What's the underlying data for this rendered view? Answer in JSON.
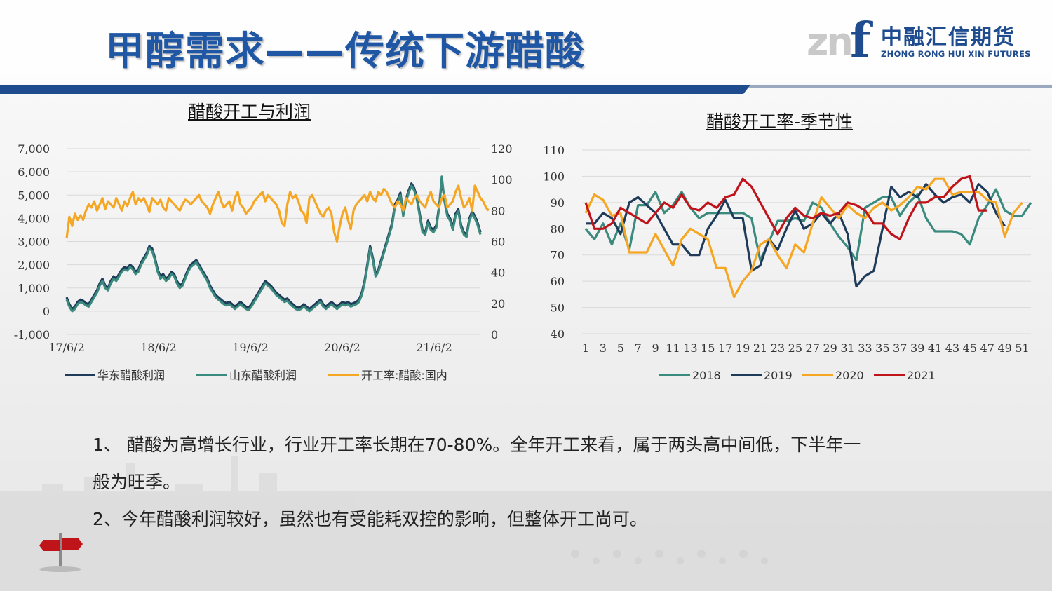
{
  "slide": {
    "title": "甲醇需求——传统下游醋酸",
    "logo": {
      "mark_left": "zn",
      "mark_right": "f",
      "name_cn": "中融汇信期货",
      "name_en": "ZHONG RONG HUI XIN FUTURES"
    },
    "paragraphs": [
      "1、  醋酸为高增长行业，行业开工率长期在70-80%。全年开工来看，属于两头高中间低，下半年一",
      "般为旺季。",
      "2、今年醋酸利润较好，虽然也有受能耗双控的影响，但整体开工尚可。"
    ],
    "colors": {
      "title": "#1f57a5",
      "band": "#1f4c8f"
    }
  },
  "chart_data": [
    {
      "type": "line",
      "title": "醋酸开工与利润",
      "x_tick_labels": [
        "17/6/2",
        "18/6/2",
        "19/6/2",
        "20/6/2",
        "21/6/2"
      ],
      "left_axis": {
        "ylim": [
          -1000,
          7000
        ],
        "ticks": [
          "-1,000",
          "0",
          "1,000",
          "2,000",
          "3,000",
          "4,000",
          "5,000",
          "6,000",
          "7,000"
        ]
      },
      "right_axis": {
        "ylim": [
          0,
          120
        ],
        "ticks": [
          "0",
          "20",
          "40",
          "60",
          "80",
          "100",
          "120"
        ]
      },
      "legend_position": "bottom",
      "grid": true,
      "series": [
        {
          "name": "华东醋酸利润",
          "axis": "left",
          "color": "#1f3b5a",
          "values": [
            600,
            300,
            100,
            200,
            400,
            500,
            450,
            350,
            300,
            500,
            700,
            900,
            1200,
            1400,
            1100,
            1000,
            1300,
            1500,
            1400,
            1600,
            1800,
            1900,
            1850,
            2000,
            1900,
            1700,
            1800,
            2100,
            2300,
            2500,
            2800,
            2700,
            2300,
            1800,
            1500,
            1600,
            1400,
            1500,
            1700,
            1600,
            1300,
            1100,
            1200,
            1500,
            1800,
            2000,
            2100,
            2200,
            2000,
            1800,
            1600,
            1400,
            1100,
            900,
            700,
            600,
            500,
            400,
            350,
            400,
            300,
            200,
            300,
            400,
            300,
            200,
            150,
            300,
            500,
            700,
            900,
            1100,
            1300,
            1200,
            1100,
            950,
            800,
            700,
            600,
            500,
            550,
            400,
            300,
            200,
            150,
            200,
            300,
            200,
            100,
            200,
            300,
            400,
            500,
            300,
            200,
            300,
            400,
            300,
            200,
            300,
            400,
            350,
            400,
            300,
            350,
            400,
            500,
            800,
            1300,
            2000,
            2800,
            2300,
            1600,
            1800,
            2200,
            2600,
            3000,
            3400,
            3800,
            4600,
            4800,
            5100,
            4200,
            4800,
            5200,
            5500,
            5300,
            4900,
            4200,
            3500,
            3400,
            3900,
            3600,
            3500,
            3700,
            4500,
            5600,
            4800,
            4200,
            4000,
            3600,
            4200,
            4400,
            3700,
            3400,
            3300,
            4000,
            4300,
            4100,
            3800,
            3400
          ],
          "note": "visible tick range start"
        },
        {
          "name": "山东醋酸利润",
          "axis": "left",
          "color": "#3a8a7d",
          "values": [
            500,
            200,
            0,
            100,
            300,
            400,
            350,
            250,
            200,
            400,
            600,
            800,
            1100,
            1300,
            1000,
            900,
            1200,
            1400,
            1300,
            1500,
            1700,
            1800,
            1750,
            1900,
            1800,
            1600,
            1700,
            2000,
            2200,
            2400,
            2700,
            2600,
            2200,
            1700,
            1400,
            1500,
            1300,
            1400,
            1600,
            1500,
            1200,
            1000,
            1100,
            1400,
            1700,
            1900,
            2000,
            2100,
            1900,
            1700,
            1500,
            1300,
            1000,
            800,
            600,
            500,
            400,
            300,
            250,
            300,
            200,
            100,
            200,
            300,
            200,
            100,
            50,
            200,
            400,
            600,
            800,
            1000,
            1200,
            1100,
            1000,
            850,
            700,
            600,
            500,
            400,
            450,
            300,
            200,
            100,
            50,
            100,
            200,
            100,
            0,
            100,
            200,
            300,
            400,
            200,
            100,
            200,
            300,
            200,
            100,
            200,
            300,
            250,
            300,
            200,
            250,
            300,
            400,
            700,
            1200,
            1900,
            2700,
            2200,
            1500,
            1700,
            2100,
            2500,
            2900,
            3300,
            3700,
            4500,
            4700,
            5000,
            4100,
            4700,
            5100,
            5400,
            5200,
            4800,
            4100,
            3400,
            3300,
            3800,
            3500,
            3400,
            3600,
            4400,
            5800,
            4700,
            4100,
            3900,
            3500,
            4100,
            4300,
            3600,
            3300,
            3200,
            3900,
            4200,
            4000,
            3700,
            3300
          ]
        },
        {
          "name": "开工率:醋酸:国内",
          "axis": "right",
          "color": "#f5a623",
          "values": [
            62,
            76,
            70,
            78,
            74,
            77,
            74,
            80,
            84,
            82,
            86,
            80,
            84,
            88,
            81,
            86,
            84,
            82,
            88,
            84,
            80,
            86,
            83,
            88,
            92,
            84,
            88,
            86,
            88,
            84,
            79,
            88,
            86,
            84,
            87,
            82,
            80,
            88,
            86,
            84,
            82,
            80,
            84,
            87,
            86,
            84,
            86,
            88,
            90,
            86,
            84,
            82,
            78,
            84,
            88,
            92,
            86,
            82,
            84,
            86,
            80,
            88,
            92,
            84,
            82,
            78,
            80,
            82,
            86,
            88,
            90,
            92,
            86,
            90,
            88,
            86,
            84,
            80,
            72,
            70,
            84,
            92,
            88,
            90,
            86,
            80,
            78,
            72,
            88,
            90,
            86,
            82,
            78,
            76,
            80,
            82,
            78,
            66,
            60,
            70,
            78,
            82,
            74,
            68,
            80,
            84,
            86,
            88,
            90,
            86,
            92,
            88,
            86,
            92,
            90,
            94,
            92,
            88,
            84,
            82,
            86,
            84,
            80,
            88,
            86,
            84,
            88,
            90,
            86,
            84,
            82,
            88,
            92,
            86,
            84,
            82,
            88,
            90,
            82,
            84,
            86,
            92,
            96,
            88,
            82,
            84,
            88,
            80,
            96,
            92,
            88,
            86,
            82,
            80
          ]
        }
      ]
    },
    {
      "type": "line",
      "title": "醋酸开工率-季节性",
      "x": [
        1,
        2,
        3,
        4,
        5,
        6,
        7,
        8,
        9,
        10,
        11,
        12,
        13,
        14,
        15,
        16,
        17,
        18,
        19,
        20,
        21,
        22,
        23,
        24,
        25,
        26,
        27,
        28,
        29,
        30,
        31,
        32,
        33,
        34,
        35,
        36,
        37,
        38,
        39,
        40,
        41,
        42,
        43,
        44,
        45,
        46,
        47,
        48,
        49,
        50,
        51,
        52
      ],
      "x_tick_labels": [
        "1",
        "3",
        "5",
        "7",
        "9",
        "11",
        "13",
        "15",
        "17",
        "19",
        "21",
        "23",
        "25",
        "27",
        "29",
        "31",
        "33",
        "35",
        "37",
        "39",
        "41",
        "43",
        "45",
        "47",
        "49",
        "51"
      ],
      "ylim": [
        40,
        110
      ],
      "y_ticks": [
        "40",
        "50",
        "60",
        "70",
        "80",
        "90",
        "100",
        "110"
      ],
      "legend_position": "bottom",
      "grid": true,
      "series": [
        {
          "name": "2018",
          "color": "#3a8a7d",
          "values": [
            80,
            76,
            82,
            74,
            82,
            72,
            89,
            89,
            94,
            86,
            89,
            94,
            88,
            84,
            86,
            86,
            86,
            86,
            86,
            84,
            68,
            75,
            83,
            83,
            84,
            83,
            90,
            88,
            82,
            77,
            73,
            68,
            88,
            90,
            92,
            92,
            85,
            90,
            93,
            84,
            79,
            79,
            79,
            78,
            74,
            84,
            89,
            95,
            87,
            85,
            85,
            90
          ]
        },
        {
          "name": "2019",
          "color": "#1f3b5a",
          "values": [
            82,
            82,
            86,
            84,
            78,
            90,
            92,
            89,
            86,
            80,
            74,
            74,
            70,
            70,
            80,
            85,
            91,
            84,
            84,
            64,
            66,
            76,
            72,
            80,
            87,
            80,
            82,
            86,
            82,
            86,
            78,
            58,
            62,
            64,
            80,
            96,
            92,
            94,
            92,
            97,
            93,
            90,
            92,
            93,
            90,
            97,
            94,
            86,
            81,
            null,
            null,
            null
          ]
        },
        {
          "name": "2020",
          "color": "#f5a623",
          "values": [
            86,
            93,
            91,
            85,
            86,
            71,
            71,
            71,
            78,
            72,
            66,
            76,
            80,
            78,
            76,
            65,
            65,
            54,
            60,
            64,
            74,
            76,
            70,
            65,
            74,
            71,
            82,
            92,
            88,
            84,
            89,
            86,
            84,
            88,
            90,
            87,
            89,
            92,
            96,
            95,
            99,
            99,
            93,
            94,
            94,
            94,
            91,
            90,
            77,
            86,
            90,
            null
          ]
        },
        {
          "name": "2021",
          "color": "#c0141b",
          "values": [
            90,
            80,
            80,
            82,
            88,
            86,
            84,
            82,
            86,
            90,
            88,
            93,
            88,
            87,
            90,
            88,
            92,
            93,
            99,
            96,
            90,
            84,
            78,
            84,
            88,
            85,
            84,
            86,
            85,
            86,
            90,
            89,
            87,
            82,
            82,
            78,
            76,
            84,
            90,
            90,
            92,
            92,
            96,
            99,
            100,
            87,
            87,
            null,
            null,
            null,
            null,
            null
          ]
        }
      ]
    }
  ]
}
